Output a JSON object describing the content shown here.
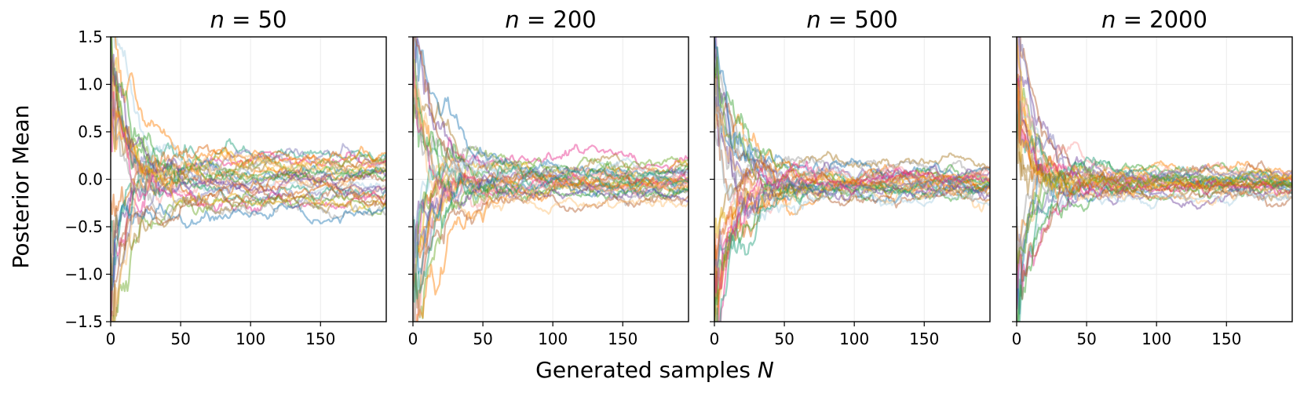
{
  "figure": {
    "xlabel_prefix": "Generated samples ",
    "xlabel_var": "N",
    "ylabel": "Posterior Mean"
  },
  "chart_data": [
    {
      "type": "line",
      "title_var": "n",
      "title_rest": " = 50",
      "xlim": [
        0,
        197
      ],
      "ylim": [
        -1.5,
        1.5
      ],
      "xticks": [
        0,
        50,
        100,
        150
      ],
      "yticks": [
        -1.5,
        -1.0,
        -0.5,
        0.0,
        0.5,
        1.0,
        1.5
      ],
      "ytick_labels": [
        "−1.5",
        "−1.0",
        "−0.5",
        "0.0",
        "0.5",
        "1.0",
        "1.5"
      ],
      "show_yticklabels": true,
      "grid": true,
      "n_series": 30,
      "series_final_values": [
        0.28,
        0.24,
        0.22,
        0.2,
        0.17,
        0.14,
        0.11,
        0.08,
        0.05,
        0.03,
        0.02,
        0.0,
        -0.02,
        -0.04,
        -0.06,
        -0.09,
        -0.12,
        -0.15,
        -0.18,
        -0.21,
        -0.24,
        -0.27,
        -0.3,
        -0.35,
        -0.39,
        0.25,
        0.1,
        -0.05,
        -0.2,
        0.19
      ],
      "seed": 11
    },
    {
      "type": "line",
      "title_var": "n",
      "title_rest": " = 200",
      "xlim": [
        0,
        197
      ],
      "ylim": [
        -1.5,
        1.5
      ],
      "xticks": [
        0,
        50,
        100,
        150
      ],
      "yticks": [
        -1.5,
        -1.0,
        -0.5,
        0.0,
        0.5,
        1.0,
        1.5
      ],
      "show_yticklabels": false,
      "grid": true,
      "n_series": 30,
      "series_final_values": [
        0.25,
        0.17,
        0.12,
        0.1,
        0.08,
        0.07,
        0.05,
        0.04,
        0.03,
        0.02,
        0.01,
        0.0,
        -0.01,
        -0.02,
        -0.03,
        -0.04,
        -0.05,
        -0.06,
        -0.08,
        -0.09,
        -0.1,
        -0.11,
        -0.12,
        -0.14,
        -0.16,
        -0.19,
        -0.25,
        0.06,
        -0.07,
        0.02
      ],
      "seed": 23
    },
    {
      "type": "line",
      "title_var": "n",
      "title_rest": " = 500",
      "xlim": [
        0,
        197
      ],
      "ylim": [
        -1.5,
        1.5
      ],
      "xticks": [
        0,
        50,
        100,
        150
      ],
      "yticks": [
        -1.5,
        -1.0,
        -0.5,
        0.0,
        0.5,
        1.0,
        1.5
      ],
      "show_yticklabels": false,
      "grid": true,
      "n_series": 30,
      "series_final_values": [
        0.15,
        0.12,
        0.09,
        0.07,
        0.05,
        0.03,
        0.02,
        0.0,
        -0.01,
        -0.02,
        -0.03,
        -0.04,
        -0.05,
        -0.06,
        -0.07,
        -0.08,
        -0.09,
        -0.1,
        -0.11,
        -0.12,
        -0.13,
        -0.15,
        -0.17,
        -0.2,
        -0.24,
        -0.05,
        -0.08,
        -0.03,
        -0.11,
        0.01
      ],
      "seed": 37
    },
    {
      "type": "line",
      "title_var": "n",
      "title_rest": " = 2000",
      "xlim": [
        0,
        197
      ],
      "ylim": [
        -1.5,
        1.5
      ],
      "xticks": [
        0,
        50,
        100,
        150
      ],
      "yticks": [
        -1.5,
        -1.0,
        -0.5,
        0.0,
        0.5,
        1.0,
        1.5
      ],
      "show_yticklabels": false,
      "grid": true,
      "n_series": 30,
      "series_final_values": [
        0.07,
        0.06,
        0.05,
        0.04,
        0.03,
        0.02,
        0.01,
        0.0,
        -0.01,
        -0.02,
        -0.03,
        -0.04,
        -0.05,
        -0.06,
        -0.07,
        -0.08,
        -0.09,
        -0.1,
        -0.12,
        -0.14,
        -0.17,
        -0.19,
        0.02,
        -0.03,
        -0.06,
        0.04,
        -0.1,
        -0.02,
        0.0,
        -0.05
      ],
      "seed": 53
    }
  ],
  "colors": [
    "#1b9e77",
    "#d95f02",
    "#7570b3",
    "#e7298a",
    "#66a61e",
    "#e6ab02",
    "#a6761d",
    "#999999",
    "#1f78b4",
    "#ff7f00",
    "#33a02c",
    "#6a3d9a",
    "#b15928",
    "#fdbf6f",
    "#a6cee3",
    "#fb9a99"
  ]
}
